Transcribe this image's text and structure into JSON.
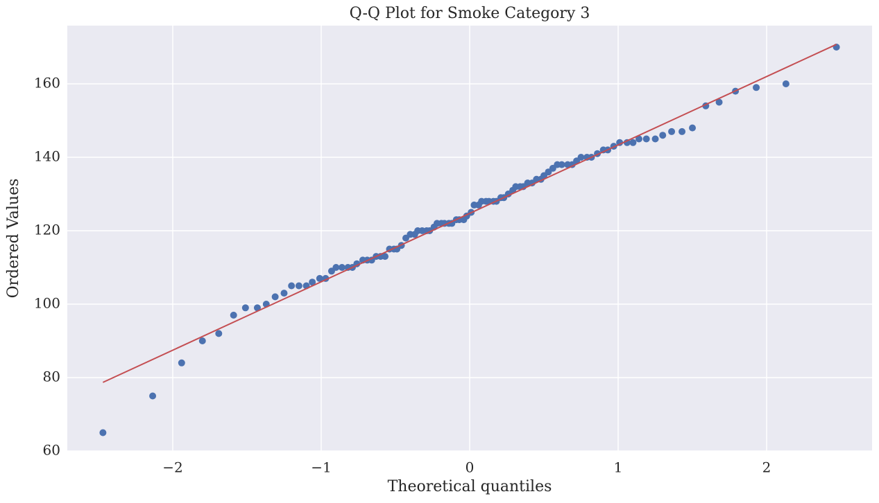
{
  "chart_data": {
    "type": "scatter",
    "title": "Q-Q Plot for Smoke Category 3",
    "x_label": "Theoretical quantiles",
    "y_label": "Ordered Values",
    "color": "#4c72b0",
    "grid": true,
    "background": "#eaeaf2",
    "xlim": [
      -2.71,
      2.71
    ],
    "ylim": [
      60,
      175.85
    ],
    "xticks": [
      {
        "value": -2,
        "label": "−2"
      },
      {
        "value": -1,
        "label": "−1"
      },
      0,
      1,
      2
    ],
    "yticks": [
      60,
      80,
      100,
      120,
      140,
      160
    ],
    "x": [
      -2.47,
      -2.135,
      -1.94,
      -1.8,
      -1.69,
      -1.59,
      -1.51,
      -1.43,
      -1.37,
      -1.31,
      -1.25,
      -1.2,
      -1.15,
      -1.1,
      -1.06,
      -1.01,
      -0.97,
      -0.93,
      -0.9,
      -0.86,
      -0.82,
      -0.79,
      -0.76,
      -0.72,
      -0.69,
      -0.66,
      -0.63,
      -0.6,
      -0.57,
      -0.54,
      -0.51,
      -0.49,
      -0.46,
      -0.43,
      -0.4,
      -0.37,
      -0.35,
      -0.32,
      -0.29,
      -0.27,
      -0.24,
      -0.22,
      -0.19,
      -0.17,
      -0.14,
      -0.12,
      -0.09,
      -0.07,
      -0.04,
      -0.02,
      0.01,
      0.03,
      0.06,
      0.08,
      0.11,
      0.13,
      0.16,
      0.18,
      0.21,
      0.23,
      0.26,
      0.29,
      0.31,
      0.34,
      0.36,
      0.39,
      0.42,
      0.45,
      0.48,
      0.5,
      0.53,
      0.56,
      0.59,
      0.62,
      0.66,
      0.69,
      0.72,
      0.75,
      0.79,
      0.82,
      0.86,
      0.9,
      0.93,
      0.97,
      1.01,
      1.06,
      1.1,
      1.14,
      1.19,
      1.25,
      1.3,
      1.36,
      1.43,
      1.5,
      1.59,
      1.68,
      1.79,
      1.93,
      2.13,
      2.47
    ],
    "values": [
      65,
      75,
      84,
      90,
      92,
      97,
      99,
      99,
      100,
      102,
      103,
      105,
      105,
      105,
      106,
      107,
      107,
      109,
      110,
      110,
      110,
      110,
      111,
      112,
      112,
      112,
      113,
      113,
      113,
      115,
      115,
      115,
      116,
      118,
      119,
      119,
      120,
      120,
      120,
      120,
      121,
      122,
      122,
      122,
      122,
      122,
      123,
      123,
      123,
      124,
      125,
      127,
      127,
      128,
      128,
      128,
      128,
      128,
      129,
      129,
      130,
      131,
      132,
      132,
      132,
      133,
      133,
      134,
      134,
      135,
      136,
      137,
      138,
      138,
      138,
      138,
      139,
      140,
      140,
      140,
      141,
      142,
      142,
      143,
      144,
      144,
      144,
      145,
      145,
      145,
      146,
      147,
      147,
      148,
      154,
      155,
      158,
      159,
      160,
      170
    ],
    "fit_line": {
      "color": "#c44e52",
      "x": [
        -2.47,
        2.47
      ],
      "y": [
        78.7,
        170.75
      ]
    }
  }
}
